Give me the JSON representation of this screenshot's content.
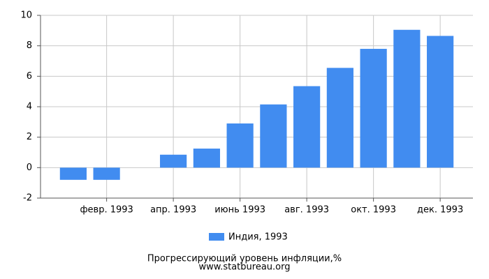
{
  "chart_data": {
    "type": "bar",
    "title": "Прогрессирующий уровень инфляции,%",
    "source": "www.statbureau.org",
    "categories": [
      null,
      "февр. 1993",
      null,
      "апр. 1993",
      null,
      "июнь 1993",
      null,
      "авг. 1993",
      null,
      "окт. 1993",
      null,
      "дек. 1993"
    ],
    "series": [
      {
        "name": "Индия, 1993",
        "color": "#418cf0",
        "values": [
          -0.8,
          -0.8,
          0,
          0.85,
          1.25,
          2.9,
          4.15,
          5.35,
          6.55,
          7.8,
          9.05,
          8.65
        ]
      }
    ],
    "ylim": [
      -2,
      10
    ],
    "yticks": [
      -2,
      0,
      2,
      4,
      6,
      8,
      10
    ],
    "grid": true
  }
}
